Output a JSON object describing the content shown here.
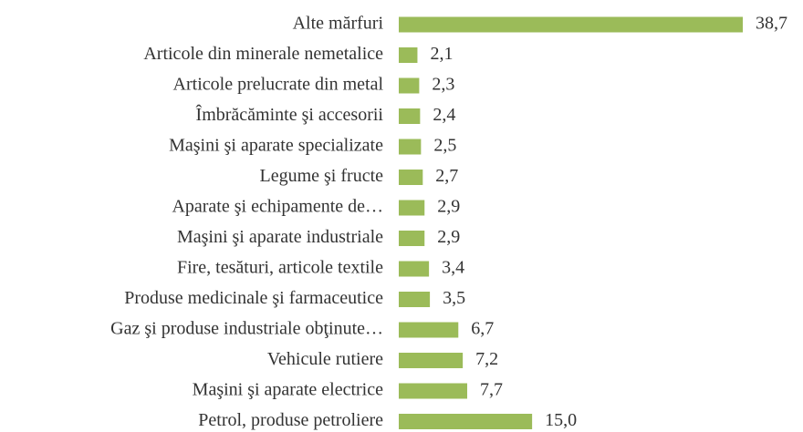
{
  "chart_data": {
    "type": "bar",
    "orientation": "horizontal",
    "categories": [
      "Alte mărfuri",
      "Articole din minerale nemetalice",
      "Articole prelucrate din metal",
      "Îmbrăcăminte şi accesorii",
      "Maşini şi aparate specializate",
      "Legume şi fructe",
      "Aparate şi echipamente de…",
      "Maşini şi aparate industriale",
      "Fire, tesături, articole textile",
      "Produse medicinale şi farmaceutice",
      "Gaz şi produse industriale obţinute…",
      "Vehicule rutiere",
      "Maşini şi aparate electrice",
      "Petrol, produse petroliere"
    ],
    "values": [
      38.7,
      2.1,
      2.3,
      2.4,
      2.5,
      2.7,
      2.9,
      2.9,
      3.4,
      3.5,
      6.7,
      7.2,
      7.7,
      15.0
    ],
    "value_labels": [
      "38,7",
      "2,1",
      "2,3",
      "2,4",
      "2,5",
      "2,7",
      "2,9",
      "2,9",
      "3,4",
      "3,5",
      "6,7",
      "7,2",
      "7,7",
      "15,0"
    ],
    "color": "#9bbb59"
  }
}
